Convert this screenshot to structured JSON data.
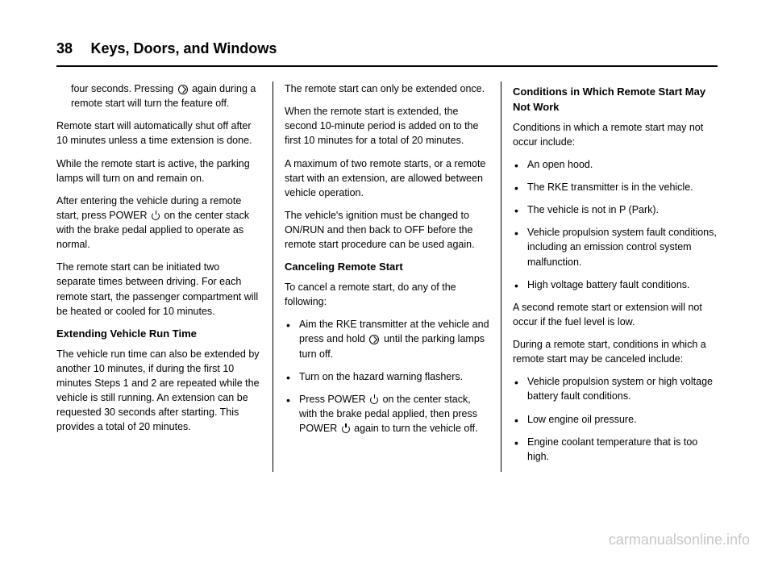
{
  "header": {
    "page_number": "38",
    "chapter_title": "Keys, Doors, and Windows"
  },
  "col1": {
    "p1a": "four seconds. Pressing ",
    "p1b": " again during a remote start will turn the feature off.",
    "p2": "Remote start will automatically shut off after 10 minutes unless a time extension is done.",
    "p3": "While the remote start is active, the parking lamps will turn on and remain on.",
    "p4a": "After entering the vehicle during a remote start, press POWER ",
    "p4b": " on the center stack with the brake pedal applied to operate as normal.",
    "p5": "The remote start can be initiated two separate times between driving. For each remote start, the passenger compartment will be heated or cooled for 10 minutes.",
    "h1": "Extending Vehicle Run Time",
    "p6": "The vehicle run time can also be extended by another 10 minutes, if during the first 10 minutes Steps 1 and 2 are repeated while the vehicle is still running. An extension can be requested 30 seconds after starting. This provides a total of 20 minutes."
  },
  "col2": {
    "p1": "The remote start can only be extended once.",
    "p2": "When the remote start is extended, the second 10-minute period is added on to the first 10 minutes for a total of 20 minutes.",
    "p3": "A maximum of two remote starts, or a remote start with an extension, are allowed between vehicle operation.",
    "p4": "The vehicle's ignition must be changed to ON/RUN and then back to OFF before the remote start procedure can be used again.",
    "h1": "Canceling Remote Start",
    "p5": "To cancel a remote start, do any of the following:",
    "b1a": "Aim the RKE transmitter at the vehicle and press and hold ",
    "b1b": " until the parking lamps turn off.",
    "b2": "Turn on the hazard warning flashers.",
    "b3a": "Press POWER ",
    "b3b": " on the center stack, with the brake pedal applied, then press POWER ",
    "b3c": " again to turn the vehicle off."
  },
  "col3": {
    "h1": "Conditions in Which Remote Start May Not Work",
    "p1": "Conditions in which a remote start may not occur include:",
    "b1": "An open hood.",
    "b2": "The RKE transmitter is in the vehicle.",
    "b3": "The vehicle is not in P (Park).",
    "b4": "Vehicle propulsion system fault conditions, including an emission control system malfunction.",
    "b5": "High voltage battery fault conditions.",
    "p2": "A second remote start or extension will not occur if the fuel level is low.",
    "p3": "During a remote start, conditions in which a remote start may be canceled include:",
    "b6": "Vehicle propulsion system or high voltage battery fault conditions.",
    "b7": "Low engine oil pressure.",
    "b8": "Engine coolant temperature that is too high."
  },
  "watermark": "carmanualsonline.info"
}
